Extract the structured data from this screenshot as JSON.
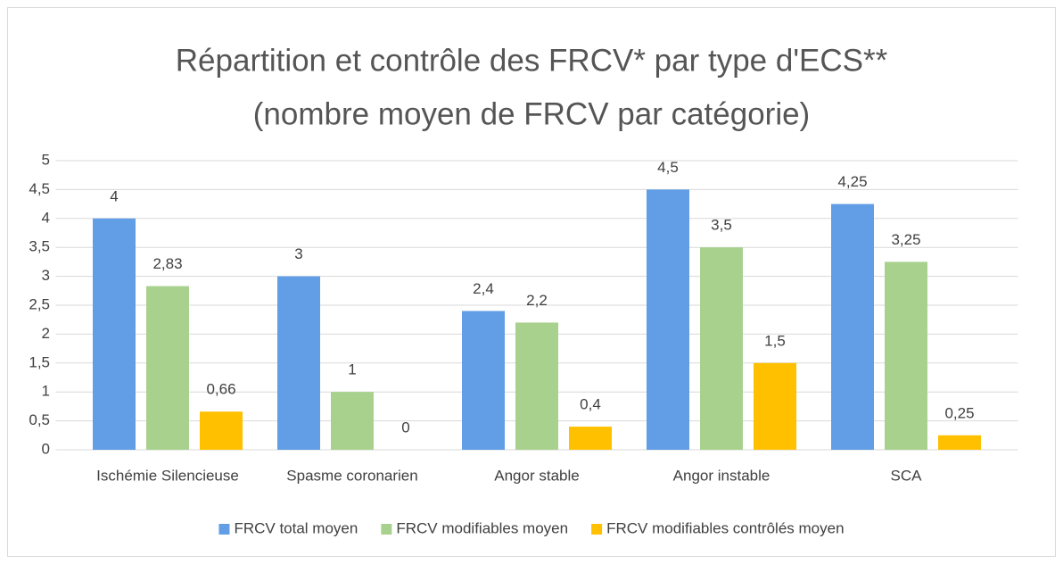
{
  "chart_data": {
    "type": "bar",
    "title": "Répartition et contrôle des FRCV* par type d'ECS**",
    "subtitle": "(nombre moyen de FRCV par catégorie)",
    "categories": [
      "Ischémie Silencieuse",
      "Spasme coronarien",
      "Angor stable",
      "Angor instable",
      "SCA"
    ],
    "series": [
      {
        "name": "FRCV total moyen",
        "color": "#619ee6",
        "values": [
          4,
          3,
          2.4,
          4.5,
          4.25
        ],
        "value_labels": [
          "4",
          "3",
          "2,4",
          "4,5",
          "4,25"
        ]
      },
      {
        "name": "FRCV modifiables moyen",
        "color": "#a9d18e",
        "values": [
          2.83,
          1,
          2.2,
          3.5,
          3.25
        ],
        "value_labels": [
          "2,83",
          "1",
          "2,2",
          "3,5",
          "3,25"
        ]
      },
      {
        "name": "FRCV modifiables contrôlés moyen",
        "color": "#ffc000",
        "values": [
          0.66,
          0,
          0.4,
          1.5,
          0.25
        ],
        "value_labels": [
          "0,66",
          "0",
          "0,4",
          "1,5",
          "0,25"
        ]
      }
    ],
    "ylim": [
      0,
      5
    ],
    "yticks": [
      0,
      {
        "value": 0.5,
        "label": "0,5"
      },
      1,
      {
        "value": 1.5,
        "label": "1,5"
      },
      2,
      {
        "value": 2.5,
        "label": "2,5"
      },
      3,
      {
        "value": 3.5,
        "label": "3,5"
      },
      4,
      {
        "value": 4.5,
        "label": "4,5"
      },
      5
    ],
    "grid": true,
    "legend": "bottom"
  }
}
